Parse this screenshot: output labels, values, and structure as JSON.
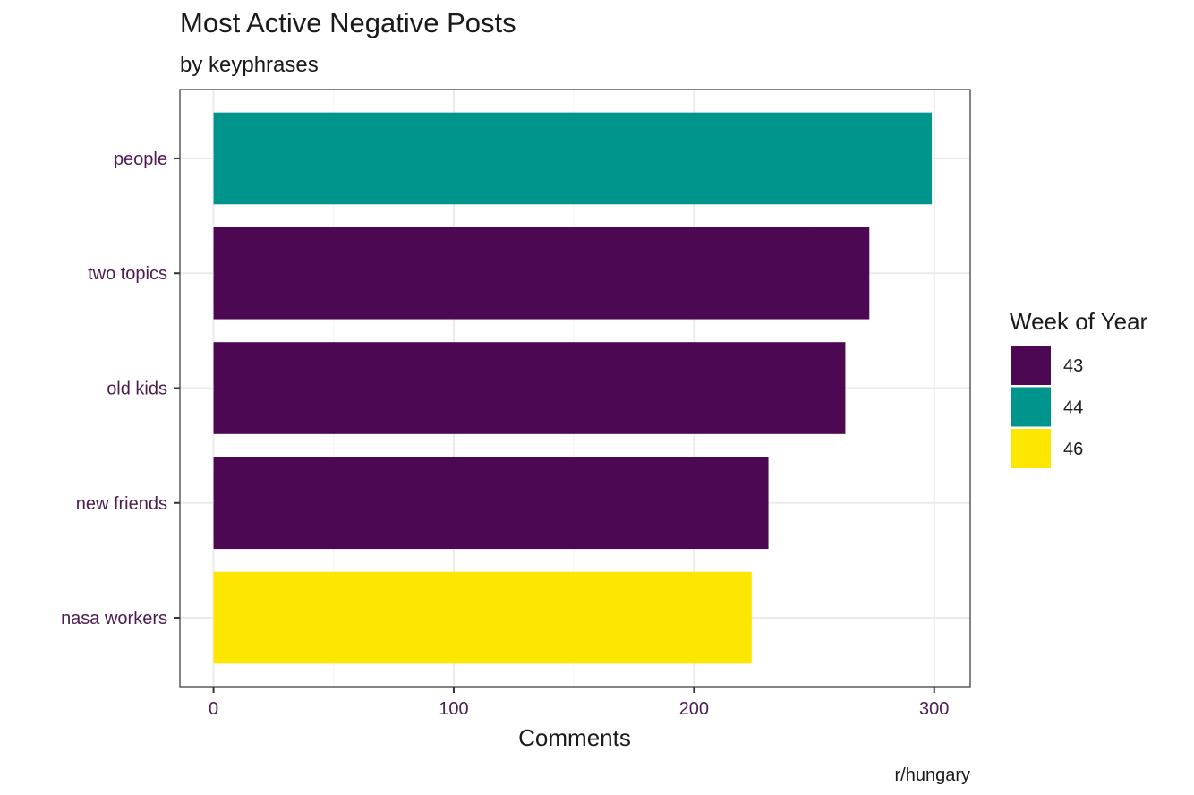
{
  "chart_data": {
    "type": "bar",
    "orientation": "horizontal",
    "title": "Most Active Negative Posts",
    "subtitle": "by keyphrases",
    "xlabel": "Comments",
    "ylabel": "",
    "caption": "r/hungary",
    "xlim": [
      -14,
      315
    ],
    "xticks": [
      0,
      100,
      200,
      300
    ],
    "grid": true,
    "legend": {
      "title": "Week of Year",
      "placement": "right",
      "entries": [
        {
          "label": "43",
          "color": "#440154"
        },
        {
          "label": "44",
          "color": "#21908c"
        },
        {
          "label": "46",
          "color": "#fde725"
        }
      ]
    },
    "categories": [
      "people",
      "two topics",
      "old kids",
      "new friends",
      "nasa workers"
    ],
    "values": [
      299,
      273,
      263,
      231,
      224
    ],
    "groups": [
      "44",
      "43",
      "43",
      "43",
      "46"
    ],
    "colors": {
      "43": "#4c0852",
      "44": "#00958c",
      "46": "#fde600"
    }
  }
}
